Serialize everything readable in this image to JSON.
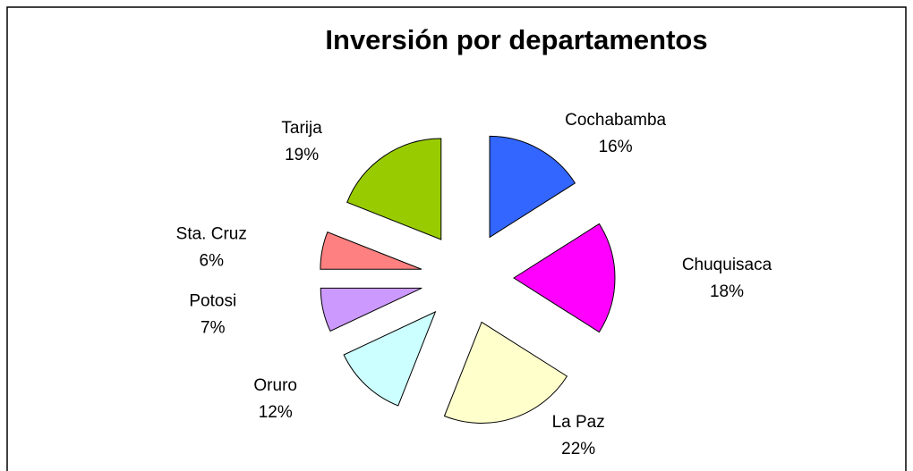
{
  "chart_data": {
    "type": "pie",
    "title": "Inversión por departamentos",
    "categories": [
      "Cochabamba",
      "Chuquisaca",
      "La Paz",
      "Oruro",
      "Potosi",
      "Sta. Cruz",
      "Tarija"
    ],
    "values": [
      16,
      18,
      22,
      12,
      7,
      6,
      19
    ],
    "value_labels": [
      "16%",
      "18%",
      "22%",
      "12%",
      "7%",
      "6%",
      "19%"
    ],
    "colors": [
      "#3366ff",
      "#ff00ff",
      "#ffffcc",
      "#ccffff",
      "#cc99ff",
      "#ff8080",
      "#99cc00"
    ]
  }
}
